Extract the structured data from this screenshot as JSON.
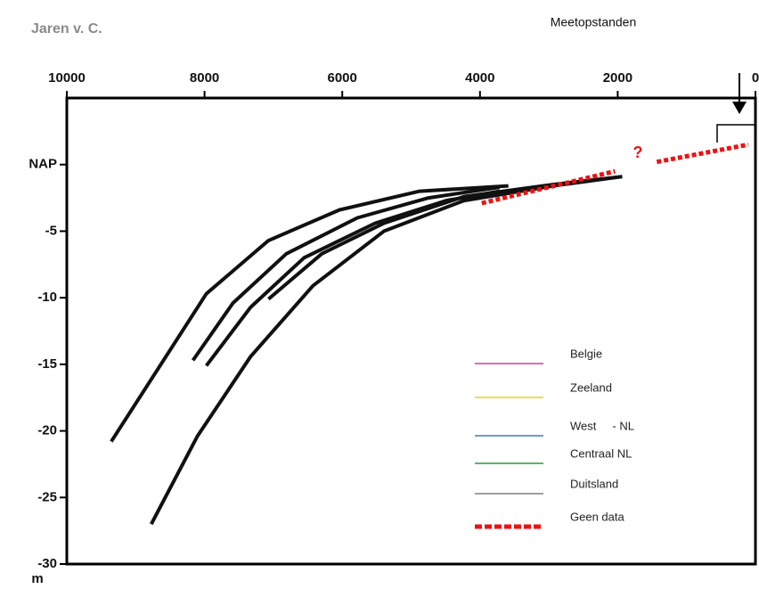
{
  "chart_data": {
    "type": "line",
    "title": "Jaren v. C.",
    "annotations": [
      "Meetopstanden",
      "?"
    ],
    "y_unit": "m",
    "xlim": [
      10000,
      0
    ],
    "xticks": [
      10000,
      8000,
      6000,
      4000,
      2000,
      0
    ],
    "ylim": [
      -30,
      5
    ],
    "yticks": [
      {
        "value": 0,
        "label": "NAP"
      },
      -5,
      -10,
      -15,
      -20,
      -25,
      -30
    ],
    "line_color": "#111111",
    "series": [
      {
        "name": "Belgie",
        "color": "#d23aa8",
        "x": [
          9355,
          7974,
          7071,
          6039,
          4877,
          3587
        ],
        "values": [
          -20.8,
          -9.7,
          -5.7,
          -3.4,
          -2.0,
          -1.6
        ]
      },
      {
        "name": "Zeeland",
        "color": "#e6d21e",
        "x": [
          8168,
          7587,
          6813,
          5781,
          4748,
          3716
        ],
        "values": [
          -14.7,
          -10.4,
          -6.7,
          -4.0,
          -2.5,
          -1.7
        ]
      },
      {
        "name": "West     - NL",
        "color": "#3a78c8",
        "x": [
          7974,
          7329,
          6555,
          5523,
          4490,
          3716
        ],
        "values": [
          -15.1,
          -10.7,
          -7.0,
          -4.4,
          -2.7,
          -2.0
        ]
      },
      {
        "name": "Centraal NL",
        "color": "#2a9a3a",
        "x": [
          7071,
          6297,
          5394,
          4232,
          2942,
          1935
        ],
        "values": [
          -10.1,
          -6.7,
          -4.4,
          -2.4,
          -1.5,
          -0.9
        ]
      },
      {
        "name": "Duitsland",
        "color": "#808080",
        "x": [
          8774,
          8103,
          7329,
          6426,
          5394,
          4232,
          2942,
          1935
        ],
        "values": [
          -27.0,
          -20.4,
          -14.4,
          -9.1,
          -5.0,
          -2.7,
          -1.6,
          -0.9
        ]
      },
      {
        "name": "Geen data",
        "color": "#ee1111",
        "dashed": true,
        "x": [
          3974,
          2039,
          1700,
          1432,
          103
        ],
        "values": [
          -2.9,
          -0.5,
          null,
          0.2,
          1.5
        ]
      }
    ]
  }
}
